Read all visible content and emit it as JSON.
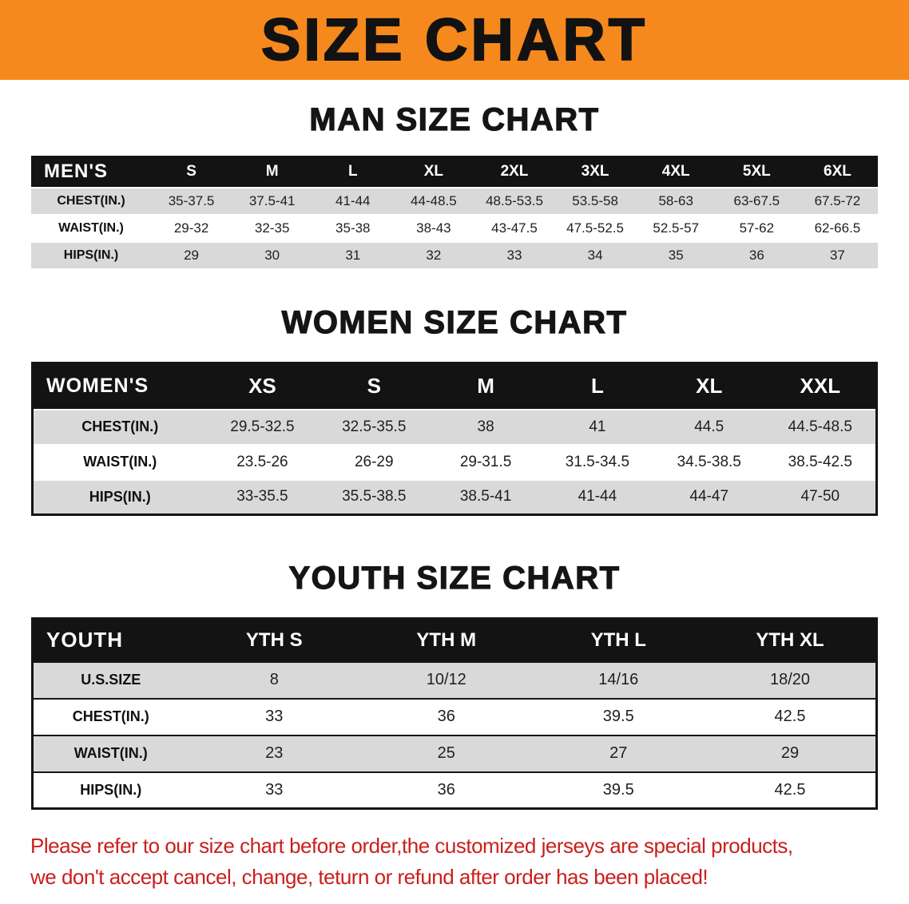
{
  "banner": {
    "title": "SIZE CHART"
  },
  "men": {
    "heading": "MAN SIZE CHART",
    "header": [
      "MEN'S",
      "S",
      "M",
      "L",
      "XL",
      "2XL",
      "3XL",
      "4XL",
      "5XL",
      "6XL"
    ],
    "rows": [
      {
        "label": "CHEST(IN.)",
        "values": [
          "35-37.5",
          "37.5-41",
          "41-44",
          "44-48.5",
          "48.5-53.5",
          "53.5-58",
          "58-63",
          "63-67.5",
          "67.5-72"
        ]
      },
      {
        "label": "WAIST(IN.)",
        "values": [
          "29-32",
          "32-35",
          "35-38",
          "38-43",
          "43-47.5",
          "47.5-52.5",
          "52.5-57",
          "57-62",
          "62-66.5"
        ]
      },
      {
        "label": "HIPS(IN.)",
        "values": [
          "29",
          "30",
          "31",
          "32",
          "33",
          "34",
          "35",
          "36",
          "37"
        ]
      }
    ]
  },
  "women": {
    "heading": "WOMEN SIZE CHART",
    "header": [
      "WOMEN'S",
      "XS",
      "S",
      "M",
      "L",
      "XL",
      "XXL"
    ],
    "rows": [
      {
        "label": "CHEST(IN.)",
        "values": [
          "29.5-32.5",
          "32.5-35.5",
          "38",
          "41",
          "44.5",
          "44.5-48.5"
        ]
      },
      {
        "label": "WAIST(IN.)",
        "values": [
          "23.5-26",
          "26-29",
          "29-31.5",
          "31.5-34.5",
          "34.5-38.5",
          "38.5-42.5"
        ]
      },
      {
        "label": "HIPS(IN.)",
        "values": [
          "33-35.5",
          "35.5-38.5",
          "38.5-41",
          "41-44",
          "44-47",
          "47-50"
        ]
      }
    ]
  },
  "youth": {
    "heading": "YOUTH SIZE CHART",
    "header": [
      "YOUTH",
      "YTH S",
      "YTH M",
      "YTH L",
      "YTH XL"
    ],
    "rows": [
      {
        "label": "U.S.SIZE",
        "values": [
          "8",
          "10/12",
          "14/16",
          "18/20"
        ]
      },
      {
        "label": "CHEST(IN.)",
        "values": [
          "33",
          "36",
          "39.5",
          "42.5"
        ]
      },
      {
        "label": "WAIST(IN.)",
        "values": [
          "23",
          "25",
          "27",
          "29"
        ]
      },
      {
        "label": "HIPS(IN.)",
        "values": [
          "33",
          "36",
          "39.5",
          "42.5"
        ]
      }
    ]
  },
  "disclaimer": {
    "line1": "Please refer to our size chart before order,the customized jerseys are special products,",
    "line2": "we don't accept cancel, change, teturn or refund after order has been placed!"
  },
  "colors": {
    "banner-orange": "#f6891d",
    "header-black": "#131313",
    "row-gray": "#d9d9d9",
    "disclaimer-red": "#c9201d"
  }
}
